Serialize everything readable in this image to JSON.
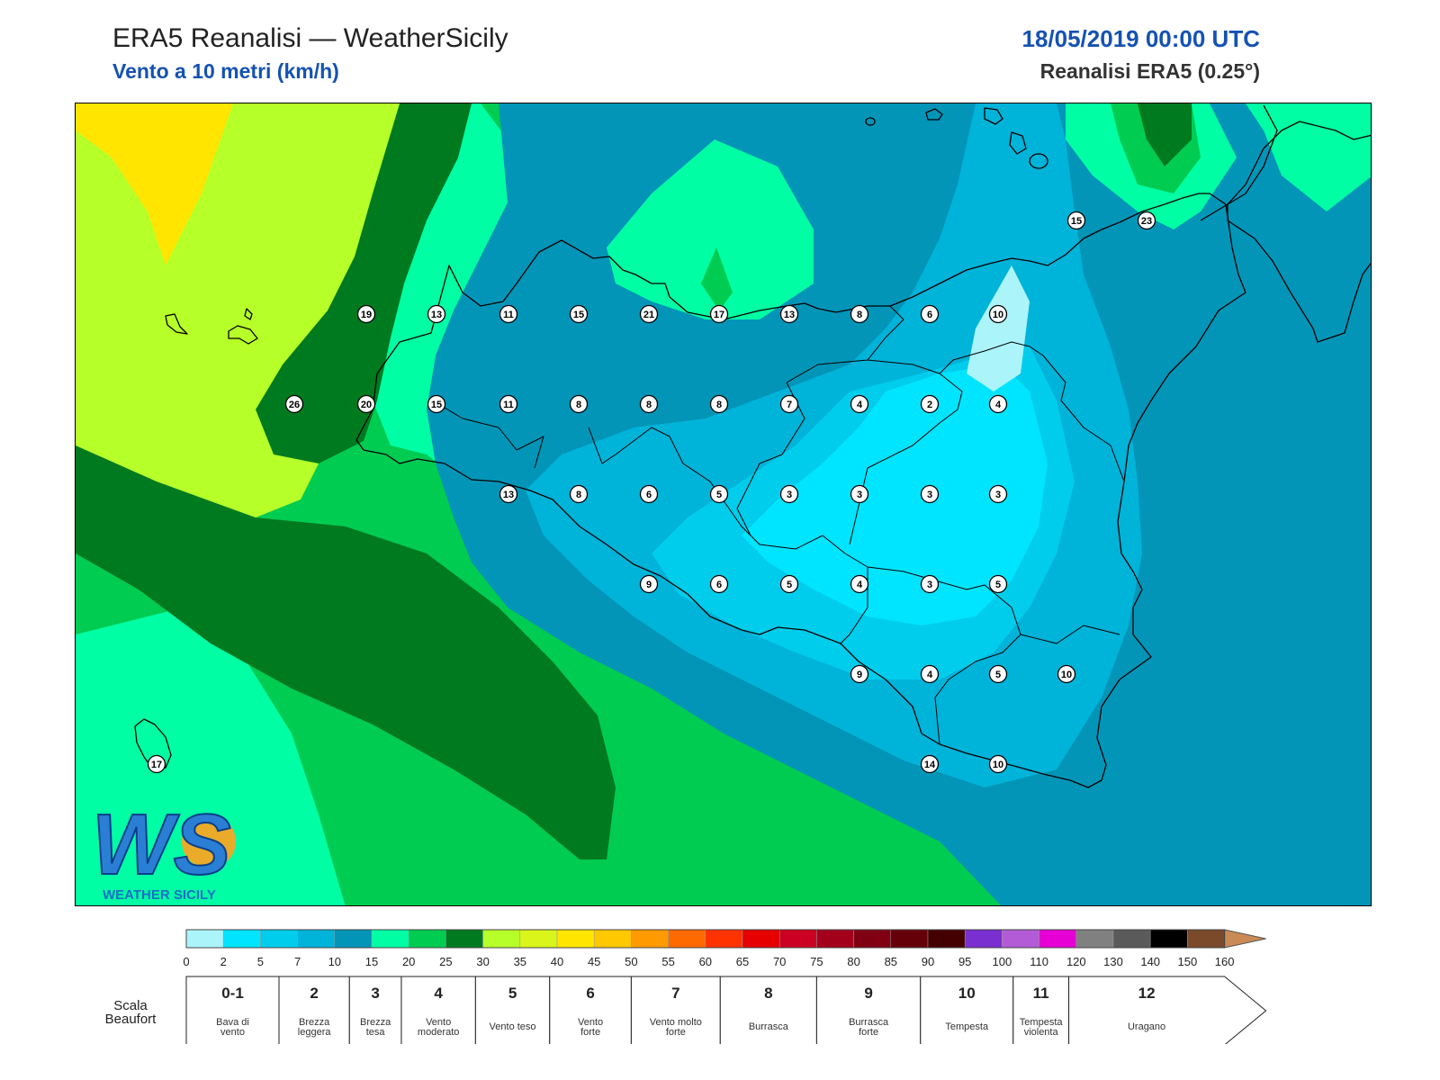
{
  "header": {
    "title": "ERA5 Reanalisi — WeatherSicily",
    "subtitle": "Vento a 10 metri (km/h)",
    "datetime": "18/05/2019 00:00 UTC",
    "model": "Reanalisi ERA5 (0.25°)"
  },
  "logo": {
    "letters": "WS",
    "text": "WEATHER SICILY"
  },
  "palette": {
    "c0": "#aaf4fa",
    "c2": "#00e5ff",
    "c5": "#00cdec",
    "c7": "#00b3d9",
    "c10": "#0295b8",
    "c15": "#00ffa4",
    "c20": "#00cc52",
    "c25": "#007a1f",
    "c30": "#b7ff29",
    "c35": "#d9f51a",
    "c40": "#ffe500",
    "c45": "#ffc800",
    "c50": "#ff9b00",
    "c55": "#ff6a00",
    "c60": "#ff3300",
    "c65": "#e60000",
    "c70": "#cc0022",
    "c75": "#a3001b",
    "c80": "#800012",
    "c85": "#660008",
    "c90": "#440000",
    "c95": "#7a2fd0",
    "c100": "#b35bd6",
    "c110": "#e600d6",
    "c120": "#808080",
    "c130": "#5a5a5a",
    "c140": "#000000",
    "c150": "#7a4a2a",
    "c160": "#c98a55"
  },
  "color_scale": {
    "ticks": [
      "0",
      "2",
      "5",
      "7",
      "10",
      "15",
      "20",
      "25",
      "30",
      "35",
      "40",
      "45",
      "50",
      "55",
      "60",
      "65",
      "70",
      "75",
      "80",
      "85",
      "90",
      "95",
      "100",
      "110",
      "120",
      "130",
      "140",
      "150",
      "160"
    ]
  },
  "beaufort": {
    "title_line1": "Scala",
    "title_line2": "Beaufort",
    "classes": [
      {
        "num": "0-1",
        "line1": "Bava di",
        "line2": "vento"
      },
      {
        "num": "2",
        "line1": "Brezza",
        "line2": "leggera"
      },
      {
        "num": "3",
        "line1": "Brezza",
        "line2": "tesa"
      },
      {
        "num": "4",
        "line1": "Vento",
        "line2": "moderato"
      },
      {
        "num": "5",
        "line1": "Vento teso",
        "line2": ""
      },
      {
        "num": "6",
        "line1": "Vento",
        "line2": "forte"
      },
      {
        "num": "7",
        "line1": "Vento molto",
        "line2": "forte"
      },
      {
        "num": "8",
        "line1": "Burrasca",
        "line2": ""
      },
      {
        "num": "9",
        "line1": "Burrasca",
        "line2": "forte"
      },
      {
        "num": "10",
        "line1": "Tempesta",
        "line2": ""
      },
      {
        "num": "11",
        "line1": "Tempesta",
        "line2": "violenta"
      },
      {
        "num": "12",
        "line1": "Uragano",
        "line2": ""
      }
    ]
  },
  "wind_values": {
    "rows": [
      [
        "15",
        "23"
      ],
      [
        "19",
        "13",
        "11",
        "15",
        "21",
        "17",
        "13",
        "8",
        "6",
        "10"
      ],
      [
        "26",
        "20",
        "15",
        "11",
        "8",
        "8",
        "8",
        "7",
        "4",
        "2",
        "4"
      ],
      [
        "13",
        "8",
        "6",
        "5",
        "3",
        "3",
        "3",
        "3"
      ],
      [
        "9",
        "6",
        "5",
        "4",
        "3",
        "5"
      ],
      [
        "9",
        "4",
        "5",
        "10"
      ],
      [
        "17",
        "14",
        "10"
      ]
    ]
  }
}
